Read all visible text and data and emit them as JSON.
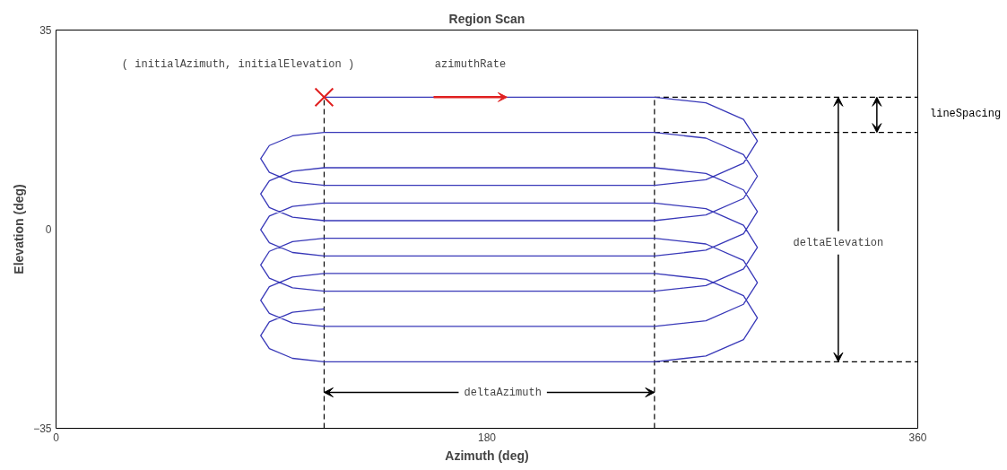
{
  "chart_data": {
    "type": "line",
    "title": "Region Scan",
    "xlabel": "Azimuth (deg)",
    "ylabel": "Elevation (deg)",
    "xlim": [
      0,
      360
    ],
    "ylim": [
      -35,
      35
    ],
    "xticks": [
      0,
      180,
      360
    ],
    "yticks": [
      -35,
      0,
      35
    ],
    "grid": false,
    "line_style": "solid",
    "series": [
      {
        "color": "#3838b8",
        "x": [
          112,
          250,
          271.5,
          287.2,
          293,
          287.2,
          271.5,
          250,
          112,
          98.8,
          89.1,
          85.5,
          89.1,
          98.8,
          112,
          250,
          271.5,
          287.2,
          293,
          287.2,
          271.5,
          250,
          112,
          98.8,
          89.1,
          85.5,
          89.1,
          98.8,
          112,
          250,
          271.5,
          287.2,
          293,
          287.2,
          271.5,
          250,
          112,
          98.8,
          89.1,
          85.5,
          89.1,
          98.8,
          112,
          250,
          271.5,
          287.2,
          293,
          287.2,
          271.5,
          250,
          112,
          98.8,
          89.1,
          85.5,
          89.1,
          98.8,
          112,
          250,
          271.5,
          287.2,
          293,
          287.2,
          271.5,
          250,
          112,
          98.8,
          89.1,
          85.5,
          89.1,
          98.8,
          112,
          250,
          271.5,
          287.2,
          293,
          287.2,
          271.5,
          250,
          112,
          98.8,
          89.1,
          85.5,
          89.1,
          98.8,
          112
        ],
        "values": [
          23.2,
          23.2,
          22.2,
          19.3,
          15.5,
          11.6,
          8.7,
          7.7,
          7.7,
          8.3,
          10.0,
          12.4,
          14.7,
          16.4,
          17.0,
          17.0,
          16.0,
          13.1,
          9.3,
          5.4,
          2.5,
          1.5,
          1.5,
          2.1,
          3.8,
          6.2,
          8.5,
          10.2,
          10.8,
          10.8,
          9.8,
          6.9,
          3.1,
          -0.8,
          -3.7,
          -4.7,
          -4.7,
          -4.1,
          -2.4,
          -0.1,
          2.3,
          4.0,
          4.6,
          4.6,
          3.6,
          0.7,
          -3.2,
          -7.0,
          -9.9,
          -10.9,
          -10.9,
          -10.3,
          -8.6,
          -6.3,
          -3.9,
          -2.2,
          -1.6,
          -1.6,
          -2.6,
          -5.5,
          -9.4,
          -13.2,
          -16.1,
          -17.1,
          -17.1,
          -16.5,
          -14.8,
          -12.5,
          -10.1,
          -8.4,
          -7.8,
          -7.8,
          -8.8,
          -11.7,
          -15.6,
          -19.4,
          -22.3,
          -23.3,
          -23.3,
          -22.7,
          -21.0,
          -18.7,
          -16.3,
          -14.6,
          -14.0
        ]
      },
      {
        "type": "scatter",
        "color": "#e02020",
        "marker": "cross",
        "x": [
          112
        ],
        "values": [
          23.2
        ]
      }
    ],
    "ref_lines": [
      {
        "axis": "x",
        "value": 112,
        "color": "#000000",
        "line_style": "dashed"
      },
      {
        "axis": "x",
        "value": 250,
        "color": "#000000",
        "line_style": "dashed"
      },
      {
        "axis": "y",
        "value": 23.2,
        "color": "#000000",
        "line_style": "dashed"
      },
      {
        "axis": "y",
        "value": 17.0,
        "color": "#000000",
        "line_style": "dashed"
      },
      {
        "axis": "y",
        "value": -23.3,
        "color": "#000000",
        "line_style": "dashed"
      }
    ],
    "annotations": [
      "( initialAzimuth, initialElevation )",
      "azimuthRate",
      "deltaAzimuth",
      "deltaElevation",
      "lineSpacing"
    ]
  }
}
